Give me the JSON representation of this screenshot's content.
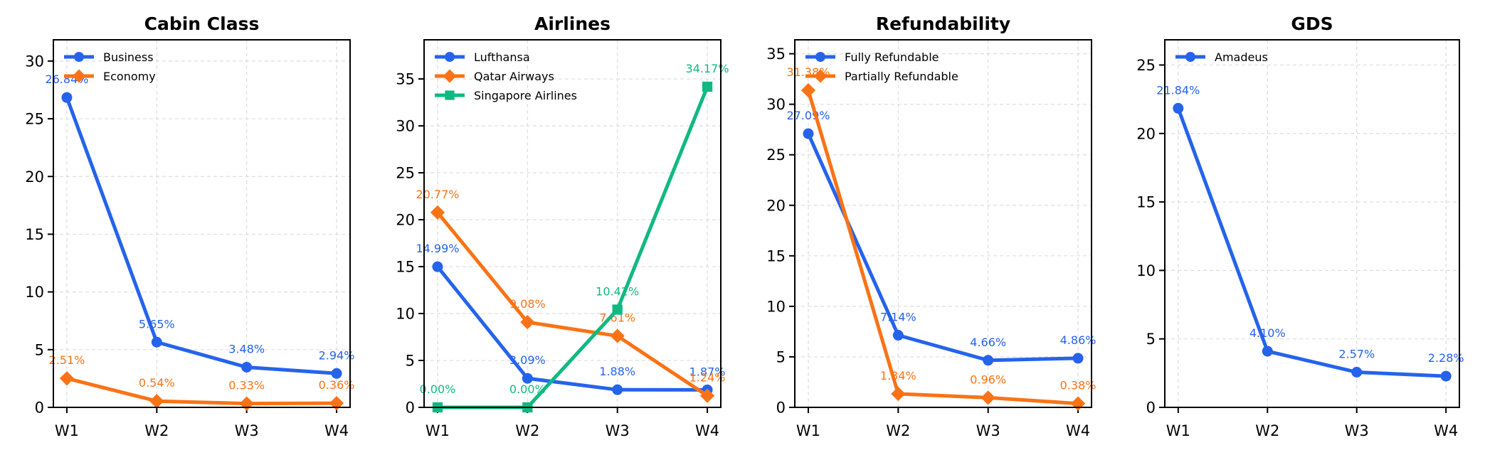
{
  "chart_data": [
    {
      "type": "line",
      "title": "Cabin Class",
      "categories": [
        "W1",
        "W2",
        "W3",
        "W4"
      ],
      "xlabel": "",
      "ylabel": "",
      "ylim": [
        0,
        31.84
      ],
      "yticks": [
        0,
        5,
        10,
        15,
        20,
        25,
        30
      ],
      "grid": true,
      "legend_position": "top-left",
      "series": [
        {
          "name": "Business",
          "color": "#2563eb",
          "marker": "circle",
          "values": [
            26.84,
            5.65,
            3.48,
            2.94
          ],
          "labels": [
            "26.84%",
            "5.65%",
            "3.48%",
            "2.94%"
          ]
        },
        {
          "name": "Economy",
          "color": "#f97316",
          "marker": "diamond",
          "values": [
            2.51,
            0.54,
            0.33,
            0.36
          ],
          "labels": [
            "2.51%",
            "0.54%",
            "0.33%",
            "0.36%"
          ]
        }
      ]
    },
    {
      "type": "line",
      "title": "Airlines",
      "categories": [
        "W1",
        "W2",
        "W3",
        "W4"
      ],
      "xlabel": "",
      "ylabel": "",
      "ylim": [
        0,
        39.17
      ],
      "yticks": [
        0,
        5,
        10,
        15,
        20,
        25,
        30,
        35
      ],
      "grid": true,
      "legend_position": "top-left",
      "series": [
        {
          "name": "Lufthansa",
          "color": "#2563eb",
          "marker": "circle",
          "values": [
            14.99,
            3.09,
            1.88,
            1.87
          ],
          "labels": [
            "14.99%",
            "3.09%",
            "1.88%",
            "1.87%"
          ]
        },
        {
          "name": "Qatar Airways",
          "color": "#f97316",
          "marker": "diamond",
          "values": [
            20.77,
            9.08,
            7.61,
            1.24
          ],
          "labels": [
            "20.77%",
            "9.08%",
            "7.61%",
            "1.24%"
          ]
        },
        {
          "name": "Singapore Airlines",
          "color": "#10b981",
          "marker": "square",
          "values": [
            0.0,
            0.0,
            10.42,
            34.17
          ],
          "labels": [
            "0.00%",
            "0.00%",
            "10.42%",
            "34.17%"
          ]
        }
      ]
    },
    {
      "type": "line",
      "title": "Refundability",
      "categories": [
        "W1",
        "W2",
        "W3",
        "W4"
      ],
      "xlabel": "",
      "ylabel": "",
      "ylim": [
        0,
        36.38
      ],
      "yticks": [
        0,
        5,
        10,
        15,
        20,
        25,
        30,
        35
      ],
      "grid": true,
      "legend_position": "top-left",
      "series": [
        {
          "name": "Fully Refundable",
          "color": "#2563eb",
          "marker": "circle",
          "values": [
            27.09,
            7.14,
            4.66,
            4.86
          ],
          "labels": [
            "27.09%",
            "7.14%",
            "4.66%",
            "4.86%"
          ]
        },
        {
          "name": "Partially Refundable",
          "color": "#f97316",
          "marker": "diamond",
          "values": [
            31.38,
            1.34,
            0.96,
            0.38
          ],
          "labels": [
            "31.38%",
            "1.34%",
            "0.96%",
            "0.38%"
          ]
        }
      ]
    },
    {
      "type": "line",
      "title": "GDS",
      "categories": [
        "W1",
        "W2",
        "W3",
        "W4"
      ],
      "xlabel": "",
      "ylabel": "",
      "ylim": [
        0,
        26.84
      ],
      "yticks": [
        0,
        5,
        10,
        15,
        20,
        25
      ],
      "grid": true,
      "legend_position": "top-left",
      "series": [
        {
          "name": "Amadeus",
          "color": "#2563eb",
          "marker": "circle",
          "values": [
            21.84,
            4.1,
            2.57,
            2.28
          ],
          "labels": [
            "21.84%",
            "4.10%",
            "2.57%",
            "2.28%"
          ]
        }
      ]
    }
  ]
}
